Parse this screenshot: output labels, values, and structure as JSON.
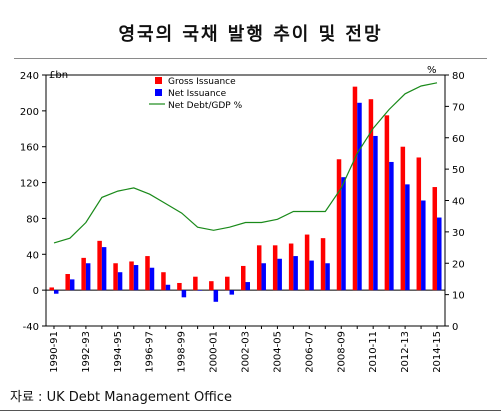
{
  "title": "영국의 국채 발행 추이 및 전망",
  "source": "자료 : UK Debt Management Office",
  "chart_data": {
    "type": "bar+line",
    "categories": [
      "1990-91",
      "1991-92",
      "1992-93",
      "1993-94",
      "1994-95",
      "1995-96",
      "1996-97",
      "1997-98",
      "1998-99",
      "1999-00",
      "2000-01",
      "2001-02",
      "2002-03",
      "2003-04",
      "2004-05",
      "2005-06",
      "2006-07",
      "2007-08",
      "2008-09",
      "2009-10",
      "2010-11",
      "2011-12",
      "2012-13",
      "2013-14",
      "2014-15"
    ],
    "tick_labels": [
      "1990-91",
      "1992-93",
      "1994-95",
      "1996-97",
      "1998-99",
      "2000-01",
      "2002-03",
      "2004-05",
      "2006-07",
      "2008-09",
      "2010-11",
      "2012-13",
      "2014-15"
    ],
    "series": [
      {
        "name": "Gross Issuance",
        "type": "bar",
        "axis": "left",
        "color": "#ff0000",
        "values": [
          3,
          18,
          36,
          55,
          30,
          32,
          38,
          20,
          8,
          15,
          10,
          15,
          27,
          50,
          50,
          52,
          62,
          58,
          146,
          227,
          213,
          195,
          160,
          148,
          115
        ]
      },
      {
        "name": "Net Issuance",
        "type": "bar",
        "axis": "left",
        "color": "#0000ff",
        "values": [
          -4,
          12,
          30,
          48,
          20,
          28,
          25,
          6,
          -8,
          0,
          -13,
          -5,
          9,
          30,
          35,
          38,
          33,
          30,
          126,
          209,
          172,
          143,
          118,
          100,
          81
        ]
      },
      {
        "name": "Net Debt/GDP %",
        "type": "line",
        "axis": "right",
        "color": "#1a8a1a",
        "values": [
          26.5,
          28,
          33,
          41,
          43,
          44,
          42,
          39,
          36,
          31.5,
          30.5,
          31.5,
          33,
          33,
          34,
          36.5,
          36.5,
          36.5,
          44,
          55,
          63,
          69,
          74,
          76.5,
          77.5
        ]
      }
    ],
    "y_left": {
      "min": -40,
      "max": 240,
      "ticks": [
        -40,
        0,
        40,
        80,
        120,
        160,
        200,
        240
      ],
      "unit_label": "£bn"
    },
    "y_right": {
      "min": 0,
      "max": 80,
      "ticks": [
        0,
        10,
        20,
        30,
        40,
        50,
        60,
        70,
        80
      ],
      "unit_label": "%"
    },
    "grid": false,
    "legend_position": "top-center"
  }
}
